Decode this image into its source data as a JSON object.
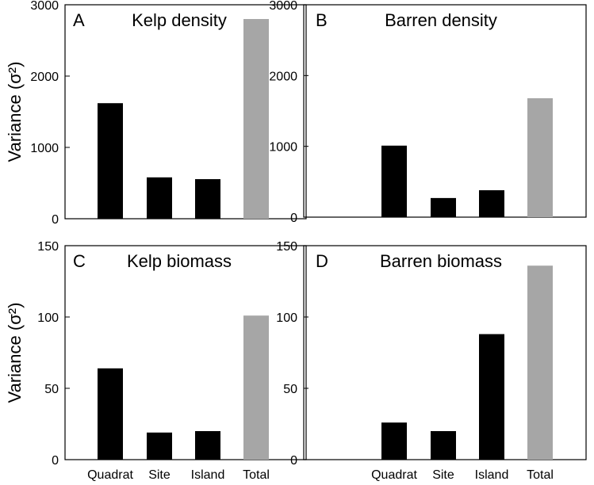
{
  "chart_data": [
    {
      "type": "bar",
      "panel_letter": "A",
      "title": "Kelp density",
      "ylabel": "Variance (σ²)",
      "ylim": [
        0,
        3000
      ],
      "yticks": [
        0,
        1000,
        2000,
        3000
      ],
      "categories": [
        "Quadrat",
        "Site",
        "Island",
        "Total"
      ],
      "values": [
        1620,
        580,
        555,
        2800
      ],
      "colors": [
        "#000000",
        "#000000",
        "#000000",
        "#a6a6a6"
      ]
    },
    {
      "type": "bar",
      "panel_letter": "B",
      "title": "Barren density",
      "ylabel": "",
      "ylim": [
        0,
        3000
      ],
      "yticks": [
        0,
        1000,
        2000,
        3000
      ],
      "categories": [
        "Quadrat",
        "Site",
        "Island",
        "Total"
      ],
      "values": [
        1010,
        270,
        380,
        1680
      ],
      "colors": [
        "#000000",
        "#000000",
        "#000000",
        "#a6a6a6"
      ]
    },
    {
      "type": "bar",
      "panel_letter": "C",
      "title": "Kelp biomass",
      "ylabel": "Variance (σ²)",
      "ylim": [
        0,
        150
      ],
      "yticks": [
        0,
        50,
        100,
        150
      ],
      "categories": [
        "Quadrat",
        "Site",
        "Island",
        "Total"
      ],
      "values": [
        64,
        19,
        20,
        101
      ],
      "colors": [
        "#000000",
        "#000000",
        "#000000",
        "#a6a6a6"
      ]
    },
    {
      "type": "bar",
      "panel_letter": "D",
      "title": "Barren biomass",
      "ylabel": "",
      "ylim": [
        0,
        150
      ],
      "yticks": [
        0,
        50,
        100,
        150
      ],
      "categories": [
        "Quadrat",
        "Site",
        "Island",
        "Total"
      ],
      "values": [
        26,
        20,
        88,
        136
      ],
      "colors": [
        "#000000",
        "#000000",
        "#000000",
        "#a6a6a6"
      ]
    }
  ]
}
